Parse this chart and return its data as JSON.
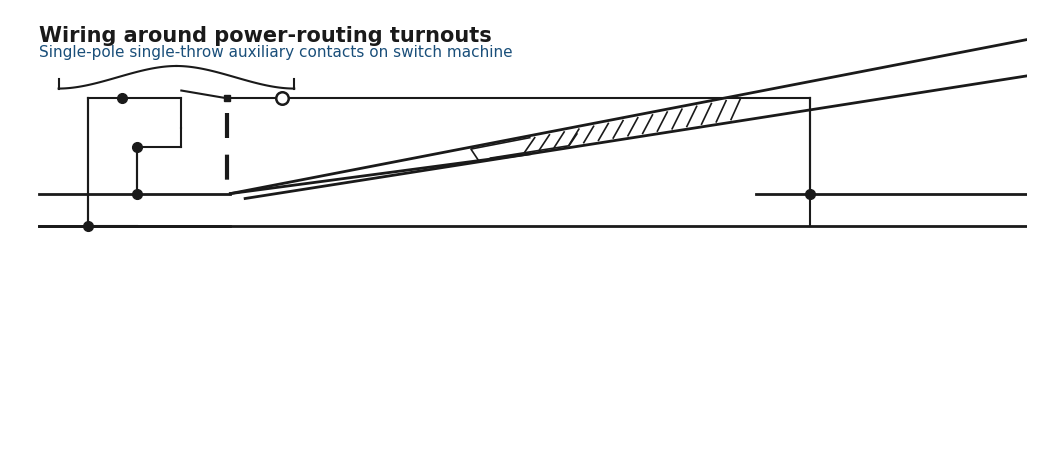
{
  "title": "Wiring around power-routing turnouts",
  "subtitle": "Single-pole single-throw auxiliary contacts on switch machine",
  "bg_color": "#ffffff",
  "line_color": "#1a1a1a",
  "title_color": "#1a1a1a",
  "subtitle_color": "#1a4f7a",
  "title_fontsize": 15,
  "subtitle_fontsize": 11,
  "figw": 10.37,
  "figh": 4.52
}
